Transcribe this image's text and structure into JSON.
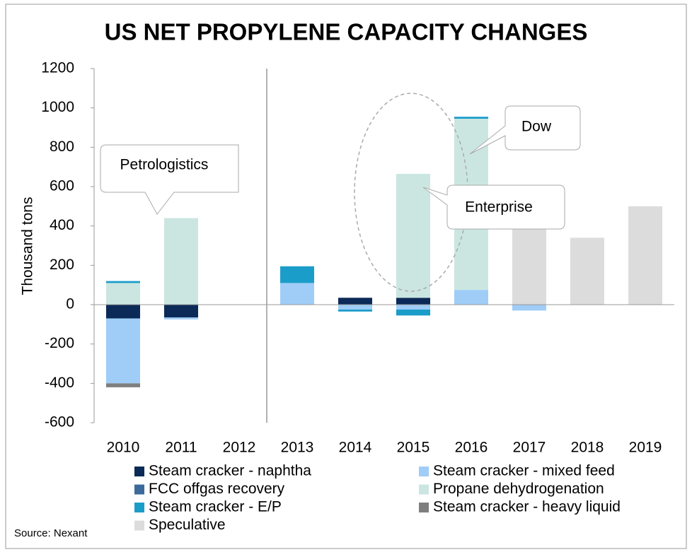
{
  "chart_data": {
    "type": "bar",
    "stacked": true,
    "title": "US NET PROPYLENE CAPACITY CHANGES",
    "y_label": "Thousand tons",
    "categories": [
      "2010",
      "2011",
      "2012",
      "2013",
      "2014",
      "2015",
      "2016",
      "2017",
      "2018",
      "2019"
    ],
    "series": [
      {
        "name": "Steam cracker - naphtha",
        "color": "#0b2a57",
        "values": [
          -70,
          -65,
          null,
          null,
          35,
          35,
          null,
          null,
          null,
          null
        ]
      },
      {
        "name": "Steam cracker - mixed feed",
        "color": "#9fcdf7",
        "values": [
          -330,
          -10,
          null,
          110,
          -25,
          -25,
          75,
          -30,
          null,
          null
        ]
      },
      {
        "name": "FCC offgas recovery",
        "color": "#3c6a9c",
        "values": [
          null,
          null,
          null,
          null,
          null,
          null,
          null,
          null,
          null,
          null
        ]
      },
      {
        "name": "Propane dehydrogenation",
        "color": "#cbe6e1",
        "values": [
          110,
          440,
          null,
          null,
          null,
          630,
          870,
          null,
          null,
          null
        ]
      },
      {
        "name": "Steam cracker - E/P",
        "color": "#1b9dca",
        "values": [
          10,
          null,
          null,
          85,
          -10,
          -30,
          10,
          null,
          null,
          null
        ]
      },
      {
        "name": "Steam cracker - heavy liquid",
        "color": "#7f7f7f",
        "values": [
          -20,
          null,
          null,
          null,
          null,
          null,
          null,
          null,
          null,
          null
        ]
      },
      {
        "name": "Speculative",
        "color": "#dcdcdc",
        "values": [
          null,
          null,
          null,
          null,
          null,
          null,
          null,
          440,
          340,
          500
        ]
      }
    ],
    "ylim": [
      -600,
      1200
    ],
    "yticks": [
      -600,
      -400,
      -200,
      0,
      200,
      400,
      600,
      800,
      1000,
      1200
    ],
    "annotations": [
      "Petrologistics",
      "Enterprise",
      "Dow"
    ],
    "source": "Source: Nexant"
  }
}
